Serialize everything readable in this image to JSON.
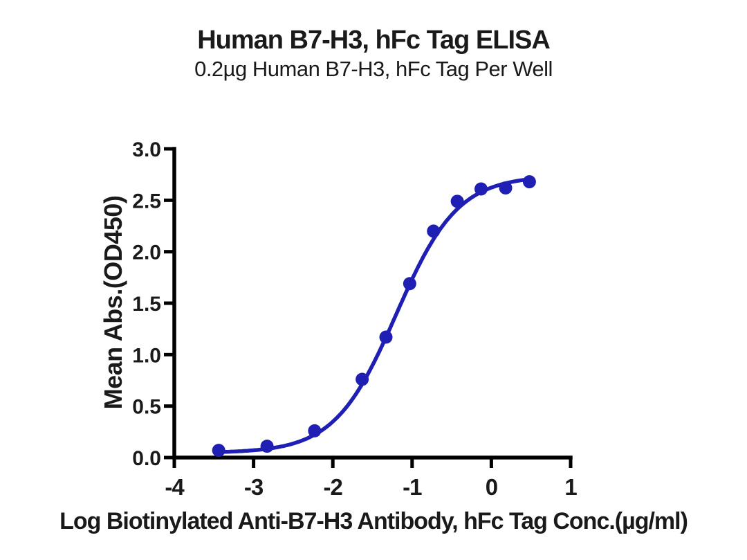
{
  "figure": {
    "background": "#ffffff"
  },
  "chart_data": {
    "type": "scatter",
    "title": "Human B7-H3, hFc Tag ELISA",
    "subtitle": "0.2µg Human B7-H3, hFc Tag Per Well",
    "xlabel": "Log Biotinylated Anti-B7-H3 Antibody, hFc Tag Conc.(µg/ml)",
    "ylabel": "Mean Abs.(OD450)",
    "x": [
      -3.44,
      -2.83,
      -2.23,
      -1.63,
      -1.33,
      -1.03,
      -0.73,
      -0.43,
      -0.13,
      0.18,
      0.48
    ],
    "y": [
      0.07,
      0.11,
      0.26,
      0.76,
      1.17,
      1.69,
      2.2,
      2.49,
      2.61,
      2.62,
      2.68
    ],
    "x_ticks": [
      "-4",
      "-3",
      "-2",
      "-1",
      "0",
      "1"
    ],
    "y_ticks": [
      "0.0",
      "0.5",
      "1.0",
      "1.5",
      "2.0",
      "2.5",
      "3.0"
    ],
    "xlim": [
      -4,
      1
    ],
    "ylim": [
      0,
      3
    ],
    "grid": false,
    "legend": "none",
    "marker": "filled-circle",
    "fit_curve_4pl": {
      "bottom": 0.045,
      "top": 2.74,
      "logEC50": -1.2,
      "hill": 1.12
    },
    "series_color": "#1f1fb4",
    "axis_color": "#000000",
    "text_color": "#1a1a1a"
  }
}
